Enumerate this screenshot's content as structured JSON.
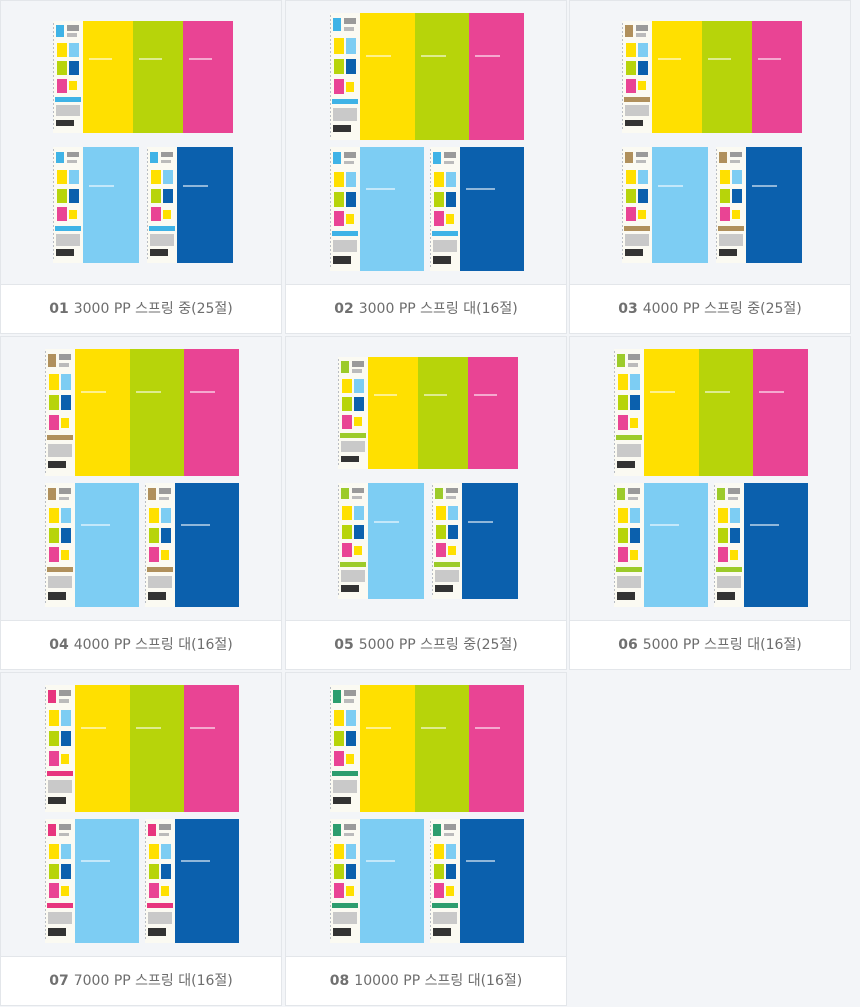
{
  "products": [
    {
      "num": "01",
      "title": "3000 PP 스프링 중(25절)",
      "accent": "#3fb3e6",
      "size": "mid"
    },
    {
      "num": "02",
      "title": "3000 PP 스프링 대(16절)",
      "accent": "#3fb3e6",
      "size": "large"
    },
    {
      "num": "03",
      "title": "4000 PP 스프링 중(25절)",
      "accent": "#b0905c",
      "size": "mid"
    },
    {
      "num": "04",
      "title": "4000 PP 스프링 대(16절)",
      "accent": "#b0905c",
      "size": "large"
    },
    {
      "num": "05",
      "title": "5000 PP 스프링 중(25절)",
      "accent": "#9ccb2a",
      "size": "mid"
    },
    {
      "num": "06",
      "title": "5000 PP 스프링 대(16절)",
      "accent": "#9ccb2a",
      "size": "large"
    },
    {
      "num": "07",
      "title": "7000 PP 스프링 대(16절)",
      "accent": "#e7357e",
      "size": "large"
    },
    {
      "num": "08",
      "title": "10000 PP 스프링 대(16절)",
      "accent": "#2d9d6e",
      "size": "large"
    }
  ],
  "colors": {
    "yellow": "#ffe000",
    "green": "#b7d40a",
    "pink": "#e94494",
    "lightblue": "#7dcdf3",
    "blue": "#0b60ad"
  }
}
